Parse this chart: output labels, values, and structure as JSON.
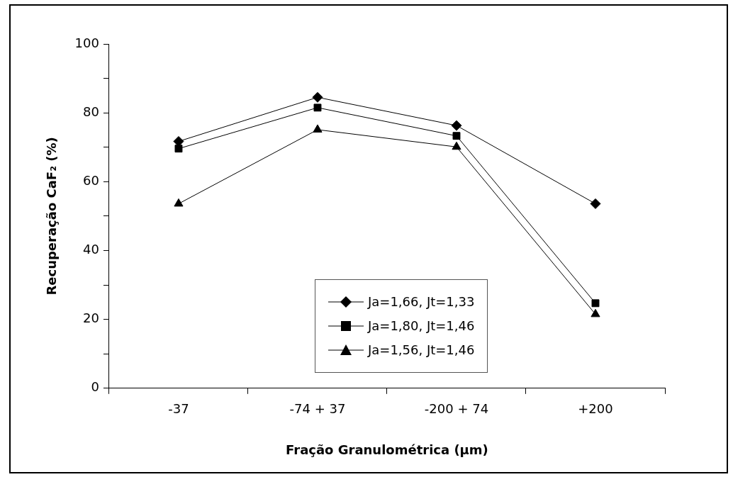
{
  "chart_data": {
    "type": "line",
    "xlabel": "Fração Granulométrica (μm)",
    "ylabel": "Recuperação CaF₂ (%)",
    "categories": [
      "-37",
      "-74 + 37",
      "-200 + 74",
      "+200"
    ],
    "series": [
      {
        "name": "Ja=1,66, Jt=1,33",
        "color": "#000000",
        "marker": "diamond",
        "values": [
          71.7,
          84.5,
          76.3,
          53.6
        ]
      },
      {
        "name": "Ja=1,80, Jt=1,46",
        "color": "#000000",
        "marker": "square",
        "values": [
          69.6,
          81.5,
          73.3,
          24.7
        ]
      },
      {
        "name": "Ja=1,56, Jt=1,46",
        "color": "#000000",
        "marker": "triangle",
        "values": [
          53.6,
          75.1,
          70.1,
          21.5
        ]
      }
    ],
    "ylim": [
      0,
      100
    ],
    "yticks": [
      0,
      {
        "value": 10,
        "label": null
      },
      20,
      {
        "value": 30,
        "label": null
      },
      40,
      {
        "value": 50,
        "label": null
      },
      60,
      {
        "value": 70,
        "label": null
      },
      80,
      {
        "value": 90,
        "label": null
      },
      100
    ],
    "grid": false,
    "legend": "bottom",
    "line_style": "solid"
  }
}
